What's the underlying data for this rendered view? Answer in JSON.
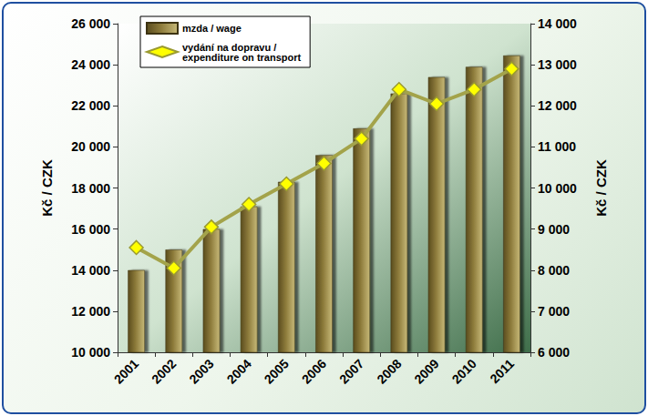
{
  "chart_data": {
    "type": "bar",
    "categories": [
      "2001",
      "2002",
      "2003",
      "2004",
      "2005",
      "2006",
      "2007",
      "2008",
      "2009",
      "2010",
      "2011"
    ],
    "series": [
      {
        "name": "mzda / wage",
        "type": "bar",
        "color": "#8c7a3a",
        "axis": "y",
        "values": [
          14000,
          15000,
          16000,
          17100,
          18300,
          19600,
          20900,
          22600,
          23400,
          23900,
          24450
        ]
      },
      {
        "name": "vydání na dopravu / expenditure on transport",
        "type": "line",
        "color": "#a3a34a",
        "marker": "diamond",
        "axis": "y2",
        "values": [
          8550,
          8050,
          9050,
          9600,
          10100,
          10600,
          11200,
          12400,
          12050,
          12400,
          12900
        ]
      }
    ],
    "y_label": "Kč / CZK",
    "y2_label": "Kč / CZK",
    "ylim": [
      10000,
      26000
    ],
    "yticks": [
      {
        "value": 10000,
        "label": "10 000"
      },
      {
        "value": 12000,
        "label": "12 000"
      },
      {
        "value": 14000,
        "label": "14 000"
      },
      {
        "value": 16000,
        "label": "16 000"
      },
      {
        "value": 18000,
        "label": "18 000"
      },
      {
        "value": 20000,
        "label": "20 000"
      },
      {
        "value": 22000,
        "label": "22 000"
      },
      {
        "value": 24000,
        "label": "24 000"
      },
      {
        "value": 26000,
        "label": "26 000"
      }
    ],
    "y2lim": [
      6000,
      14000
    ],
    "y2ticks": [
      {
        "value": 6000,
        "label": "6 000"
      },
      {
        "value": 7000,
        "label": "7 000"
      },
      {
        "value": 8000,
        "label": "8 000"
      },
      {
        "value": 9000,
        "label": "9 000"
      },
      {
        "value": 10000,
        "label": "10 000"
      },
      {
        "value": 11000,
        "label": "11 000"
      },
      {
        "value": 12000,
        "label": "12 000"
      },
      {
        "value": 13000,
        "label": "13 000"
      },
      {
        "value": 14000,
        "label": "14 000"
      }
    ],
    "grid": false,
    "legend": "upper left"
  }
}
